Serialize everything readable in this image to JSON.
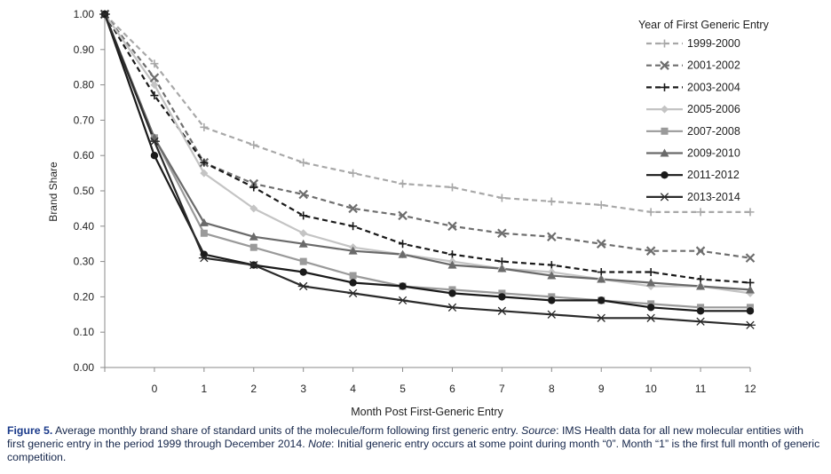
{
  "chart_data": {
    "type": "line",
    "xlabel": "Month Post First-Generic Entry",
    "ylabel": "Brand Share",
    "ylim": [
      0,
      1
    ],
    "y_ticks": [
      "0.00",
      "0.10",
      "0.20",
      "0.30",
      "0.40",
      "0.50",
      "0.60",
      "0.70",
      "0.80",
      "0.90",
      "1.00"
    ],
    "x_ticks": [
      "0",
      "1",
      "2",
      "3",
      "4",
      "5",
      "6",
      "7",
      "8",
      "9",
      "10",
      "11",
      "12"
    ],
    "x": [
      "",
      "0",
      "1",
      "2",
      "3",
      "4",
      "5",
      "6",
      "7",
      "8",
      "9",
      "10",
      "11",
      "12"
    ],
    "legend_title": "Year of First Generic Entry",
    "legend_position": "top-right",
    "grid": false,
    "series": [
      {
        "name": "1999-2000",
        "color": "#a8a8a8",
        "dash": true,
        "marker": "plus",
        "values": [
          1.0,
          0.86,
          0.68,
          0.63,
          0.58,
          0.55,
          0.52,
          0.51,
          0.48,
          0.47,
          0.46,
          0.44,
          0.44,
          0.44
        ]
      },
      {
        "name": "2001-2002",
        "color": "#6e6e6e",
        "dash": true,
        "marker": "x",
        "values": [
          1.0,
          0.82,
          0.58,
          0.52,
          0.49,
          0.45,
          0.43,
          0.4,
          0.38,
          0.37,
          0.35,
          0.33,
          0.33,
          0.31
        ]
      },
      {
        "name": "2003-2004",
        "color": "#1a1a1a",
        "dash": true,
        "marker": "plus",
        "values": [
          1.0,
          0.77,
          0.58,
          0.51,
          0.43,
          0.4,
          0.35,
          0.32,
          0.3,
          0.29,
          0.27,
          0.27,
          0.25,
          0.24
        ]
      },
      {
        "name": "2005-2006",
        "color": "#c4c4c4",
        "dash": false,
        "marker": "diamond",
        "values": [
          1.0,
          0.8,
          0.55,
          0.45,
          0.38,
          0.34,
          0.32,
          0.3,
          0.28,
          0.27,
          0.25,
          0.23,
          0.23,
          0.21
        ]
      },
      {
        "name": "2007-2008",
        "color": "#9a9a9a",
        "dash": false,
        "marker": "square",
        "values": [
          1.0,
          0.65,
          0.38,
          0.34,
          0.3,
          0.26,
          0.23,
          0.22,
          0.21,
          0.2,
          0.19,
          0.18,
          0.17,
          0.17
        ]
      },
      {
        "name": "2009-2010",
        "color": "#6a6a6a",
        "dash": false,
        "marker": "triangle",
        "values": [
          1.0,
          0.65,
          0.41,
          0.37,
          0.35,
          0.33,
          0.32,
          0.29,
          0.28,
          0.26,
          0.25,
          0.24,
          0.23,
          0.22
        ]
      },
      {
        "name": "2011-2012",
        "color": "#1a1a1a",
        "dash": false,
        "marker": "circle",
        "values": [
          1.0,
          0.6,
          0.32,
          0.29,
          0.27,
          0.24,
          0.23,
          0.21,
          0.2,
          0.19,
          0.19,
          0.17,
          0.16,
          0.16
        ]
      },
      {
        "name": "2013-2014",
        "color": "#2a2a2a",
        "dash": false,
        "marker": "star",
        "values": [
          1.0,
          0.64,
          0.31,
          0.29,
          0.23,
          0.21,
          0.19,
          0.17,
          0.16,
          0.15,
          0.14,
          0.14,
          0.13,
          0.12
        ]
      }
    ]
  },
  "caption": {
    "figure_label": "Figure 5.",
    "text_1": " Average monthly brand share of standard units of the molecule/form following first generic entry. ",
    "source_label": "Source",
    "text_2": ": IMS Health data for all new molecular entities with first generic entry in the period 1999 through December 2014. ",
    "note_label": "Note",
    "text_3": ": Initial generic entry occurs at some point during month “0”.  Month “1” is the first full month of generic competition."
  }
}
